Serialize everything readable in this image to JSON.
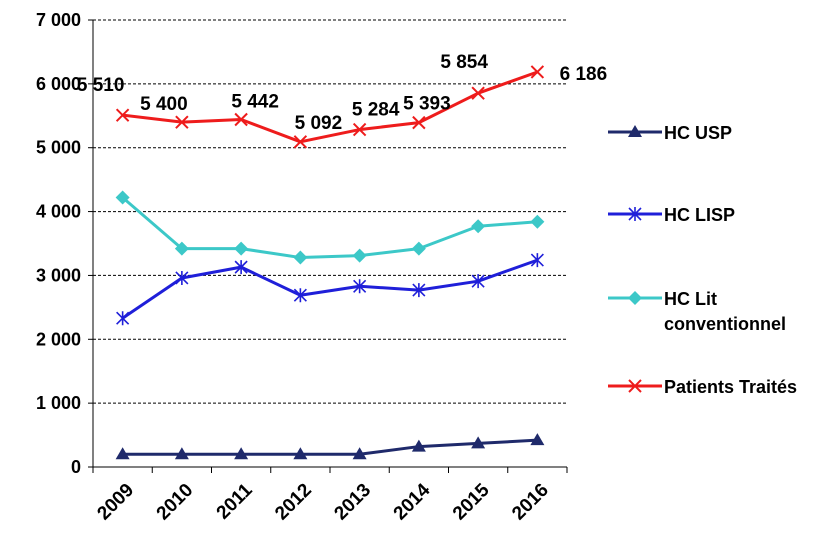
{
  "chart_data": {
    "type": "line",
    "x": [
      "2009",
      "2010",
      "2011",
      "2012",
      "2013",
      "2014",
      "2015",
      "2016"
    ],
    "ylim": [
      0,
      7000
    ],
    "yticks": [
      0,
      1000,
      2000,
      3000,
      4000,
      5000,
      6000,
      7000
    ],
    "ytick_labels": [
      "0",
      "1 000",
      "2 000",
      "3 000",
      "4 000",
      "5 000",
      "6 000",
      "7 000"
    ],
    "grid": true,
    "legend_position": "right",
    "series": [
      {
        "name": "HC USP",
        "color": "#1f2a6b",
        "marker": "triangle",
        "values": [
          200,
          200,
          200,
          200,
          200,
          320,
          370,
          420
        ]
      },
      {
        "name": "HC LISP",
        "color": "#1f1fd9",
        "marker": "asterisk",
        "values": [
          2330,
          2960,
          3130,
          2690,
          2830,
          2770,
          2910,
          3240
        ]
      },
      {
        "name": "HC Lit conventionnel",
        "color": "#3cc8c8",
        "marker": "diamond",
        "legend_lines": [
          "HC Lit",
          "conventionnel"
        ],
        "values": [
          4220,
          3420,
          3420,
          3280,
          3310,
          3420,
          3770,
          3840
        ]
      },
      {
        "name": "Patients Traités",
        "color": "#ee1c1c",
        "marker": "x",
        "values": [
          5510,
          5400,
          5442,
          5092,
          5284,
          5393,
          5854,
          6186
        ],
        "data_labels": [
          "5 510",
          "5 400",
          "5 442",
          "5 092",
          "5 284",
          "5 393",
          "5 854",
          "6 186"
        ]
      }
    ]
  }
}
